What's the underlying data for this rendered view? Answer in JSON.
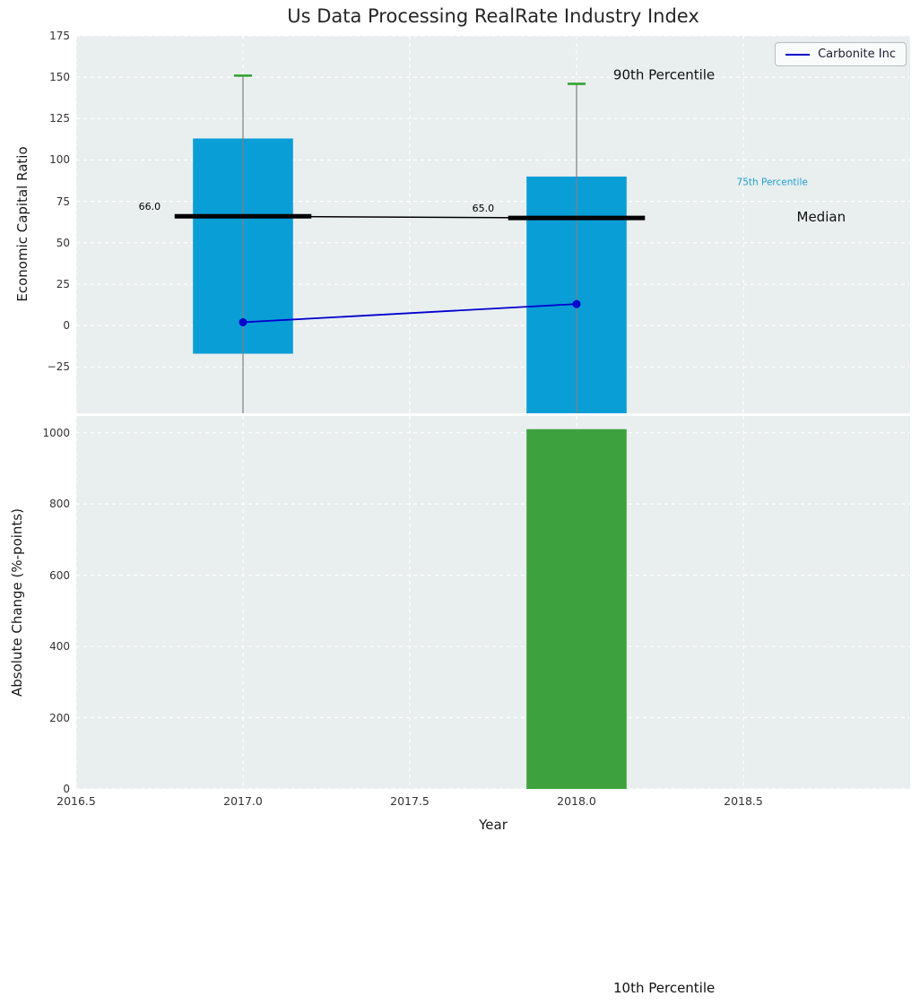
{
  "figure_text": {
    "tenth_percentile": "10th Percentile"
  },
  "chart_data": [
    {
      "type": "box-bar+line",
      "title": "Us Data Processing RealRate Industry Index",
      "ylabel": "Economic Capital Ratio",
      "xlim": [
        2016.5,
        2019.0
      ],
      "ylim": [
        -53,
        175
      ],
      "grid": true,
      "yticks": {
        "values": [
          175,
          150,
          125,
          100,
          75,
          50,
          25,
          0,
          -25
        ],
        "labels": [
          "175",
          "150",
          "125",
          "100",
          "75",
          "50",
          "25",
          "0",
          "−25"
        ]
      },
      "xgrid": [
        2016.5,
        2017.0,
        2017.5,
        2018.0,
        2018.5
      ],
      "box_color": "#0a9ed7",
      "median_color": "#000000",
      "cap_color": "#2ca02c",
      "whisker_color": "#7f7f7f",
      "boxes": [
        {
          "x": 2017,
          "width": 0.3,
          "q25": -17,
          "q75": 113,
          "median": 66,
          "whisker_high": 151,
          "whisker_low": null,
          "whisker_low_clipped": true
        },
        {
          "x": 2018,
          "width": 0.3,
          "q25": -53,
          "q25_clipped": true,
          "q75": 90,
          "median": 65,
          "whisker_high": 146,
          "whisker_low": null,
          "whisker_low_clipped": true
        }
      ],
      "series": [
        {
          "name": "Carbonite Inc",
          "color": "#0000cd",
          "x": [
            2017,
            2018
          ],
          "y": [
            2,
            13
          ]
        }
      ],
      "legend_position": "upper right",
      "annotations": [
        {
          "text": "66.0",
          "x": 2016.72,
          "y": 72,
          "size": 11,
          "color": "#000000",
          "anchor": "middle"
        },
        {
          "text": "65.0",
          "x": 2017.72,
          "y": 71,
          "size": 11,
          "color": "#000000",
          "anchor": "middle"
        },
        {
          "text": "90th Percentile",
          "x": 2018.11,
          "y": 151,
          "size": 15,
          "color": "#111111",
          "anchor": "start"
        },
        {
          "text": "75th Percentile",
          "x": 2018.48,
          "y": 87,
          "size": 10.5,
          "color": "#1f9fd0",
          "anchor": "start"
        },
        {
          "text": "Median",
          "x": 2018.66,
          "y": 65,
          "size": 15,
          "color": "#111111",
          "anchor": "start"
        }
      ]
    },
    {
      "type": "bar",
      "ylabel": "Absolute Change (%-points)",
      "xlabel": "Year",
      "xlim": [
        2016.5,
        2019.0
      ],
      "ylim": [
        0,
        1047
      ],
      "grid": true,
      "yticks": {
        "values": [
          0,
          200,
          400,
          600,
          800,
          1000
        ],
        "labels": [
          "0",
          "200",
          "400",
          "600",
          "800",
          "1000"
        ]
      },
      "xticks": {
        "values": [
          2016.5,
          2017.0,
          2017.5,
          2018.0,
          2018.5
        ],
        "labels": [
          "2016.5",
          "2017.0",
          "2017.5",
          "2018.0",
          "2018.5"
        ]
      },
      "bars": [
        {
          "x": 2018,
          "width": 0.3,
          "value": 1010,
          "color": "#3da23d"
        }
      ]
    }
  ]
}
